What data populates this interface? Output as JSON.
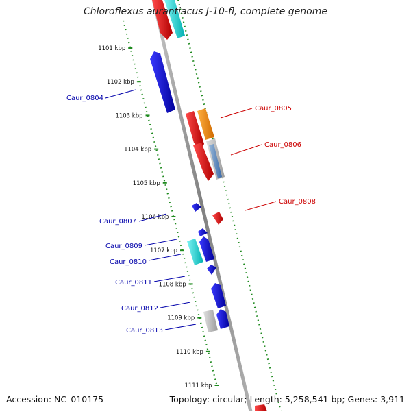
{
  "title": "Chloroflexus aurantiacus J-10-fl, complete genome",
  "footer": {
    "accession": "Accession: NC_010175",
    "summary": "Topology: circular; Length: 5,258,541 bp; Genes: 3,911"
  },
  "ticks": [
    {
      "label": "1101 kbp",
      "pos": 1101
    },
    {
      "label": "1102 kbp",
      "pos": 1102
    },
    {
      "label": "1103 kbp",
      "pos": 1103
    },
    {
      "label": "1104 kbp",
      "pos": 1104
    },
    {
      "label": "1105 kbp",
      "pos": 1105
    },
    {
      "label": "1106 kbp",
      "pos": 1106
    },
    {
      "label": "1107 kbp",
      "pos": 1107
    },
    {
      "label": "1108 kbp",
      "pos": 1108
    },
    {
      "label": "1109 kbp",
      "pos": 1109
    },
    {
      "label": "1110 kbp",
      "pos": 1110
    },
    {
      "label": "1111 kbp",
      "pos": 1111
    }
  ],
  "forward_labels": [
    {
      "text": "Caur_0805",
      "color": "#cc0000"
    },
    {
      "text": "Caur_0806",
      "color": "#cc0000"
    },
    {
      "text": "Caur_0808",
      "color": "#cc0000"
    }
  ],
  "reverse_labels": [
    {
      "text": "Caur_0804",
      "color": "#0000aa"
    },
    {
      "text": "Caur_0807",
      "color": "#0000aa"
    },
    {
      "text": "Caur_0809",
      "color": "#0000aa"
    },
    {
      "text": "Caur_0810",
      "color": "#0000aa"
    },
    {
      "text": "Caur_0811",
      "color": "#0000aa"
    },
    {
      "text": "Caur_0812",
      "color": "#0000aa"
    },
    {
      "text": "Caur_0813",
      "color": "#0000aa"
    }
  ],
  "colors": {
    "backbone": "#8c8c8c",
    "tick": "#1f8a1f",
    "forward_gene": "#ee0000",
    "reverse_gene": "#0000ee",
    "cyan_gene": "#00d6d6",
    "orange_gene": "#ff8c00",
    "grey_gene": "#b5b5b5",
    "blue_grey_gene": "#4b7fb8"
  }
}
